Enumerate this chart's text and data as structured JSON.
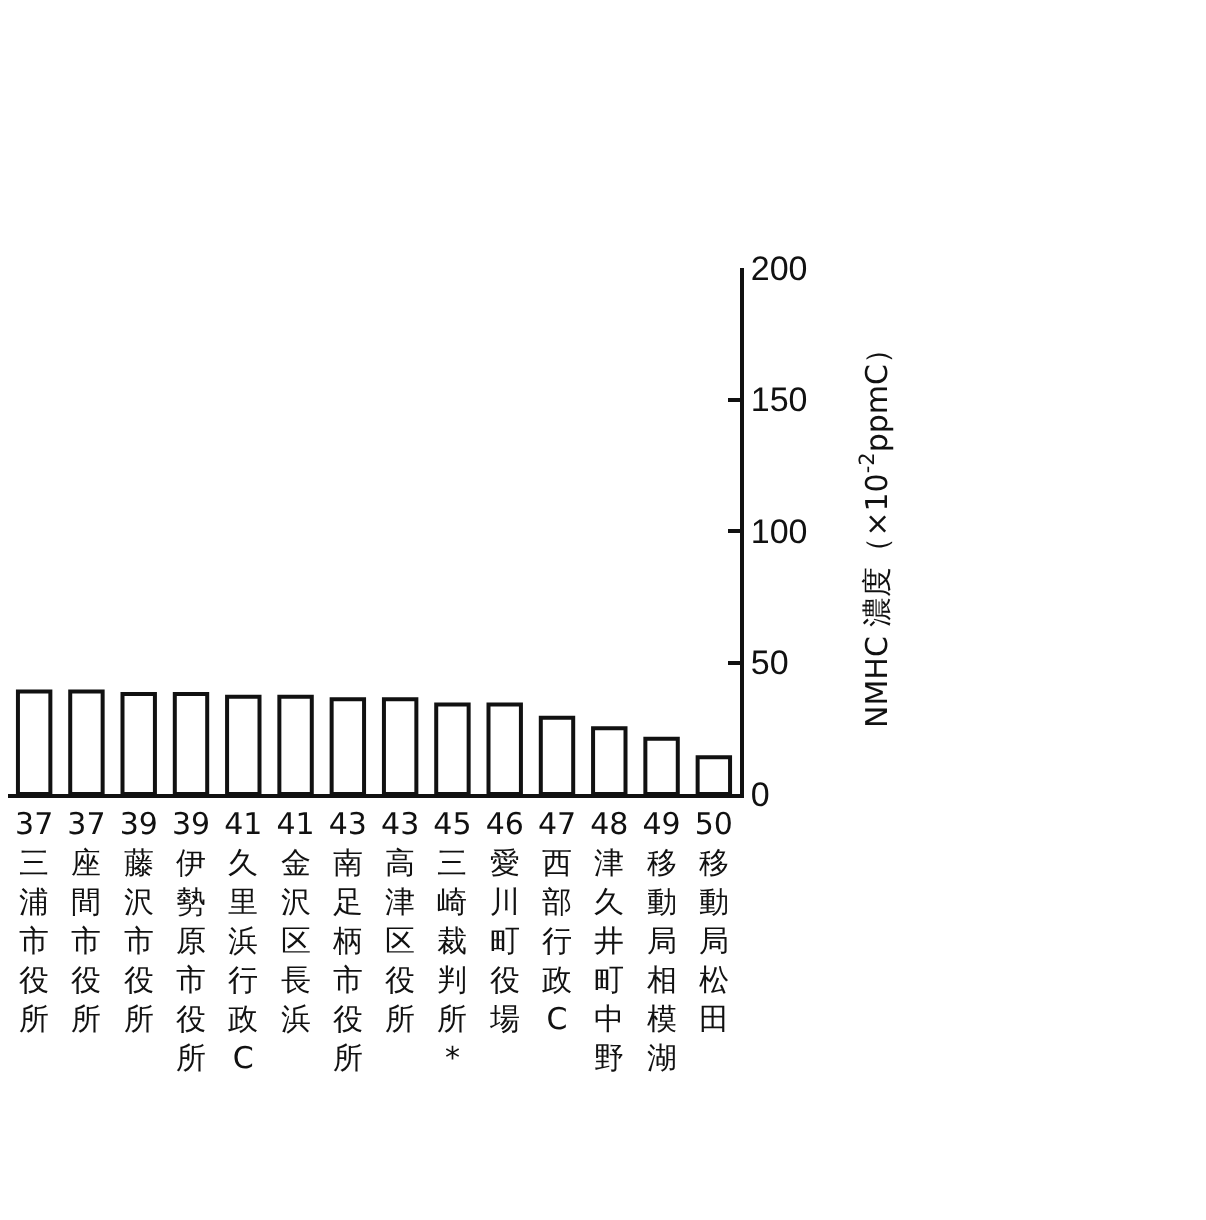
{
  "chart_data": {
    "type": "bar",
    "ylabel": "NMHC 濃度（×10$^{-2}$ppmC）",
    "categories": [
      "37 三浦市役所",
      "37 座間市役所",
      "39 藤沢市役所",
      "39 伊勢原市役所",
      "41 久里浜行政C",
      "41 金沢区長浜",
      "43 南足柄市役所",
      "43 高津区役所",
      "45 三崎裁判所*",
      "46 愛川町役場",
      "47 西部行政C",
      "48 津久井町中野",
      "49 移動局相模湖",
      "50 移動局松田"
    ],
    "values": [
      39,
      39,
      38,
      38,
      37,
      37,
      36,
      36,
      34,
      34,
      29,
      25,
      21,
      14
    ],
    "color": "#ffffff",
    "ylim": [
      0,
      200
    ],
    "yticks": [
      0,
      50,
      100,
      150,
      200
    ]
  }
}
